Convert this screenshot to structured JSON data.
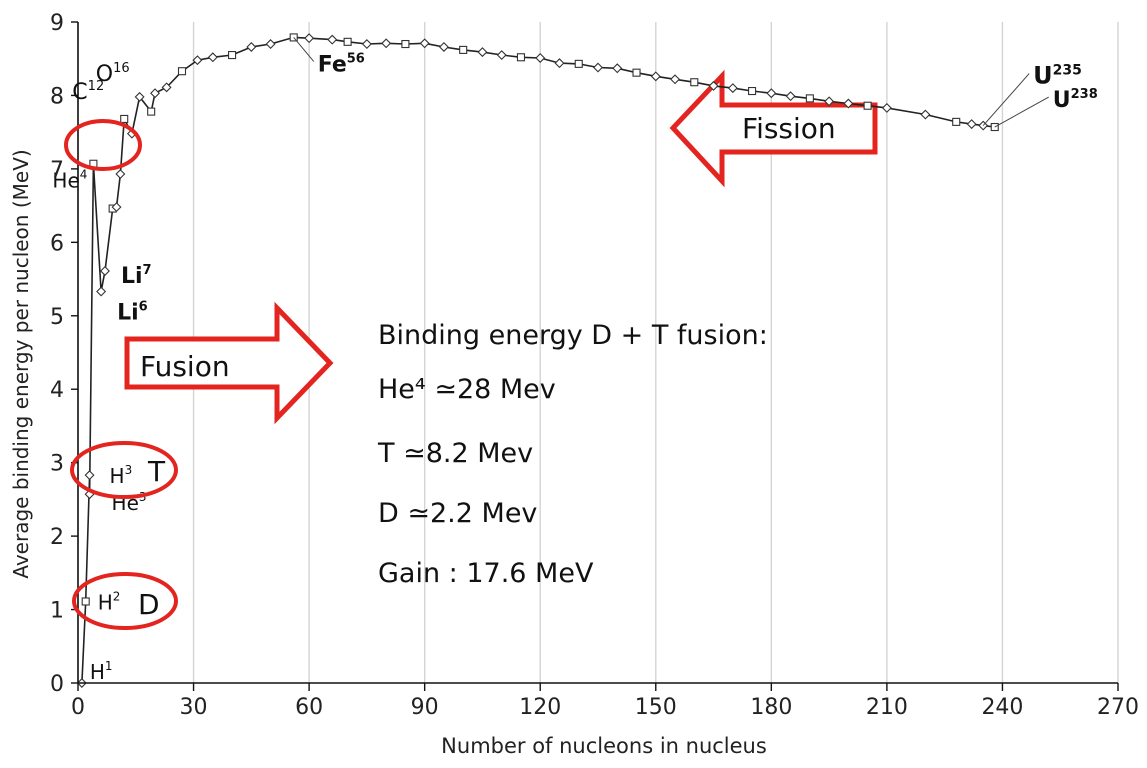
{
  "chart_data": {
    "type": "scatter",
    "xlabel": "Number of nucleons in nucleus",
    "ylabel": "Average binding energy per nucleon (MeV)",
    "xlim": [
      0,
      270
    ],
    "ylim": [
      0,
      9
    ],
    "x_ticks": [
      "0",
      "30",
      "60",
      "90",
      "120",
      "150",
      "180",
      "210",
      "240",
      "270"
    ],
    "y_ticks": [
      "0",
      "1",
      "2",
      "3",
      "4",
      "5",
      "6",
      "7",
      "8",
      "9"
    ],
    "series": [
      {
        "x": [
          1,
          2,
          3,
          3,
          4,
          6,
          7,
          9,
          10,
          11,
          12,
          14,
          16,
          19,
          20,
          23,
          27,
          31,
          35,
          40,
          45,
          50,
          56,
          60,
          66,
          70,
          75,
          80,
          85,
          90,
          95,
          100,
          105,
          110,
          115,
          120,
          125,
          130,
          135,
          140,
          145,
          150,
          155,
          160,
          165,
          170,
          175,
          180,
          185,
          190,
          195,
          200,
          205,
          210,
          220,
          228,
          232,
          235,
          238
        ],
        "y": [
          0,
          1.11,
          2.83,
          2.57,
          7.07,
          5.33,
          5.61,
          6.46,
          6.48,
          6.93,
          7.68,
          7.48,
          7.98,
          7.78,
          8.03,
          8.11,
          8.33,
          8.48,
          8.52,
          8.55,
          8.66,
          8.7,
          8.79,
          8.78,
          8.76,
          8.73,
          8.7,
          8.71,
          8.7,
          8.71,
          8.66,
          8.62,
          8.59,
          8.55,
          8.52,
          8.51,
          8.44,
          8.43,
          8.38,
          8.37,
          8.31,
          8.26,
          8.22,
          8.18,
          8.13,
          8.1,
          8.06,
          8.03,
          7.99,
          7.96,
          7.92,
          7.89,
          7.86,
          7.83,
          7.74,
          7.64,
          7.61,
          7.59,
          7.57
        ]
      }
    ],
    "isotope_labels": [
      {
        "base": "H",
        "mass": "1",
        "x": 1,
        "y": 0
      },
      {
        "base": "H",
        "mass": "2",
        "x": 2,
        "y": 1.11
      },
      {
        "base": "H",
        "mass": "3",
        "x": 3,
        "y": 2.83
      },
      {
        "base": "He",
        "mass": "3",
        "x": 3,
        "y": 2.57
      },
      {
        "base": "He",
        "mass": "4",
        "x": 4,
        "y": 7.07
      },
      {
        "base": "Li",
        "mass": "6",
        "x": 6,
        "y": 5.33
      },
      {
        "base": "Li",
        "mass": "7",
        "x": 7,
        "y": 5.61
      },
      {
        "base": "C",
        "mass": "12",
        "x": 12,
        "y": 7.68
      },
      {
        "base": "O",
        "mass": "16",
        "x": 16,
        "y": 7.98
      },
      {
        "base": "Fe",
        "mass": "56",
        "x": 56,
        "y": 8.79
      },
      {
        "base": "U",
        "mass": "235",
        "x": 235,
        "y": 7.59
      },
      {
        "base": "U",
        "mass": "238",
        "x": 238,
        "y": 7.57
      }
    ],
    "annotations": {
      "fusion_label": "Fusion",
      "fission_label": "Fission",
      "t_marker": "T",
      "d_marker": "D",
      "info": [
        "Binding energy D + T fusion:",
        "He⁴ ≃28 Mev",
        "T ≃8.2 Mev",
        "D ≃2.2 Mev",
        "Gain : 17.6 MeV"
      ]
    },
    "highlight_color": "#e3241f"
  }
}
